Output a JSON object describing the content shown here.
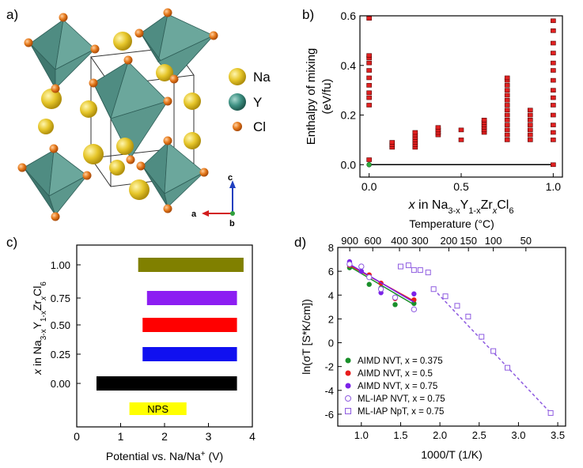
{
  "panels": {
    "a": {
      "label": "a)",
      "legend": [
        {
          "name": "Na",
          "color": "#e3c522"
        },
        {
          "name": "Y",
          "color": "#3e8e80"
        },
        {
          "name": "Cl",
          "color": "#e07a1f"
        }
      ],
      "axes": {
        "c": "c",
        "a": "a",
        "b": "b"
      }
    },
    "b": {
      "label": "b)"
    },
    "c": {
      "label": "c)"
    },
    "d": {
      "label": "d)"
    }
  },
  "chart_data": [
    {
      "id": "b",
      "type": "scatter",
      "xlabel_parts": [
        "x",
        " in Na",
        "3-x",
        "Y",
        "1-x",
        "Zr",
        "x",
        "Cl",
        "6"
      ],
      "ylabel_line1": "Enthalpy of mixing",
      "ylabel_line2": "(eV/fu)",
      "xlim": [
        -0.05,
        1.05
      ],
      "ylim": [
        -0.05,
        0.6
      ],
      "xticks": [
        "0.0",
        "0.5",
        "1.0"
      ],
      "xtick_values": [
        0,
        0.5,
        1.0
      ],
      "yticks": [
        "0.0",
        "0.2",
        "0.4",
        "0.6"
      ],
      "ytick_values": [
        0,
        0.2,
        0.4,
        0.6
      ],
      "marker_color": "#e02020",
      "hull_color": "#2eab3c",
      "series_x": [
        0,
        0.125,
        0.25,
        0.375,
        0.5,
        0.625,
        0.75,
        0.875,
        1.0
      ],
      "series_y": [
        [
          0.0,
          0.02,
          0.24,
          0.27,
          0.29,
          0.32,
          0.35,
          0.38,
          0.41,
          0.43,
          0.44,
          0.59
        ],
        [
          0.07,
          0.08,
          0.09
        ],
        [
          0.07,
          0.08,
          0.09,
          0.1,
          0.11,
          0.12,
          0.13
        ],
        [
          0.12,
          0.13,
          0.14,
          0.15
        ],
        [
          0.1,
          0.14
        ],
        [
          0.13,
          0.14,
          0.15,
          0.16,
          0.17,
          0.18
        ],
        [
          0.1,
          0.12,
          0.14,
          0.16,
          0.18,
          0.2,
          0.22,
          0.24,
          0.26,
          0.28,
          0.3,
          0.32,
          0.34,
          0.35
        ],
        [
          0.1,
          0.12,
          0.14,
          0.16,
          0.18,
          0.2,
          0.22
        ],
        [
          0.0,
          0.1,
          0.13,
          0.16,
          0.2,
          0.24,
          0.27,
          0.3,
          0.34,
          0.38,
          0.41,
          0.45,
          0.49,
          0.54,
          0.58
        ]
      ],
      "hull_line": [
        [
          0,
          0
        ],
        [
          1.0,
          0
        ]
      ]
    },
    {
      "id": "c",
      "type": "bar",
      "ylabel_parts": [
        "x",
        " in Na",
        "3-x",
        "Y",
        "1-x",
        "Zr",
        "x",
        "Cl",
        "6"
      ],
      "xlabel": "Potential vs. Na/Na",
      "xlabel_sup": "+",
      "xlabel_unit": " (V)",
      "xlim": [
        0,
        4
      ],
      "xticks": [
        "0",
        "1",
        "2",
        "3",
        "4"
      ],
      "xtick_values": [
        0,
        1,
        2,
        3,
        4
      ],
      "categories": [
        "1.00",
        "0.75",
        "0.50",
        "0.25",
        "0.00"
      ],
      "ranges": [
        [
          1.4,
          3.8
        ],
        [
          1.6,
          3.65
        ],
        [
          1.5,
          3.65
        ],
        [
          1.5,
          3.65
        ],
        [
          0.45,
          3.65
        ]
      ],
      "colors": [
        "#808000",
        "#8c1ef2",
        "#ff0000",
        "#1010f0",
        "#000000"
      ],
      "extra_bar": {
        "label": "NPS",
        "range": [
          1.2,
          2.5
        ],
        "color": "#ffff00"
      }
    },
    {
      "id": "d",
      "type": "scatter",
      "xlabel": "1000/T (1/K)",
      "ylabel": "ln(σT [S*K/cm])",
      "top_label": "Temperature (°C)",
      "xlim": [
        0.7,
        3.6
      ],
      "ylim": [
        -7,
        8
      ],
      "xticks": [
        "1.0",
        "1.5",
        "2.0",
        "2.5",
        "3.0",
        "3.5"
      ],
      "xtick_values": [
        1.0,
        1.5,
        2.0,
        2.5,
        3.0,
        3.5
      ],
      "yticks": [
        "-6",
        "-4",
        "-2",
        "0",
        "2",
        "4",
        "6",
        "8"
      ],
      "ytick_values": [
        -6,
        -4,
        -2,
        0,
        2,
        4,
        6,
        8
      ],
      "top_ticks": [
        "900",
        "600",
        "400",
        "300",
        "200",
        "150",
        "100",
        "50"
      ],
      "top_tick_values": [
        900,
        600,
        400,
        300,
        200,
        150,
        100,
        50
      ],
      "series": [
        {
          "name": "AIMD NVT, x = 0.375",
          "color": "#1a8f2a",
          "marker": "filled-circle",
          "x": [
            0.85,
            1.1,
            1.25,
            1.43,
            1.67
          ],
          "y": [
            6.3,
            4.9,
            4.6,
            3.2,
            3.3
          ],
          "fit": [
            [
              0.85,
              6.4
            ],
            [
              1.67,
              3.2
            ]
          ]
        },
        {
          "name": "AIMD NVT, x = 0.5",
          "color": "#e81c1c",
          "marker": "filled-circle",
          "x": [
            0.85,
            1.1,
            1.25,
            1.43,
            1.67
          ],
          "y": [
            6.5,
            5.7,
            5.0,
            3.7,
            3.6
          ],
          "fit": [
            [
              0.85,
              6.5
            ],
            [
              1.67,
              3.5
            ]
          ]
        },
        {
          "name": "AIMD NVT, x = 0.75",
          "color": "#7b22e8",
          "marker": "filled-circle",
          "x": [
            0.85,
            1.0,
            1.25,
            1.43,
            1.67
          ],
          "y": [
            6.8,
            6.0,
            4.2,
            3.8,
            4.1
          ],
          "fit": [
            [
              0.85,
              6.6
            ],
            [
              1.67,
              3.4
            ]
          ]
        },
        {
          "name": "ML-IAP NVT, x = 0.75",
          "color": "#8e5be0",
          "marker": "open-circle",
          "x": [
            0.85,
            1.0,
            1.1,
            1.25,
            1.43,
            1.67
          ],
          "y": [
            6.6,
            6.4,
            5.5,
            4.5,
            3.8,
            2.8
          ],
          "fit": null
        },
        {
          "name": "ML-IAP NpT, x = 0.75",
          "color": "#8e5be0",
          "marker": "open-square",
          "x": [
            1.5,
            1.6,
            1.67,
            1.75,
            1.85,
            1.92,
            2.07,
            2.22,
            2.36,
            2.53,
            2.68,
            2.86,
            3.41
          ],
          "y": [
            6.4,
            6.5,
            6.1,
            6.1,
            5.9,
            4.5,
            3.9,
            3.1,
            2.2,
            0.5,
            -0.7,
            -2.1,
            -5.9
          ],
          "fit": [
            [
              1.92,
              4.5
            ],
            [
              3.41,
              -5.9
            ]
          ]
        }
      ]
    }
  ]
}
